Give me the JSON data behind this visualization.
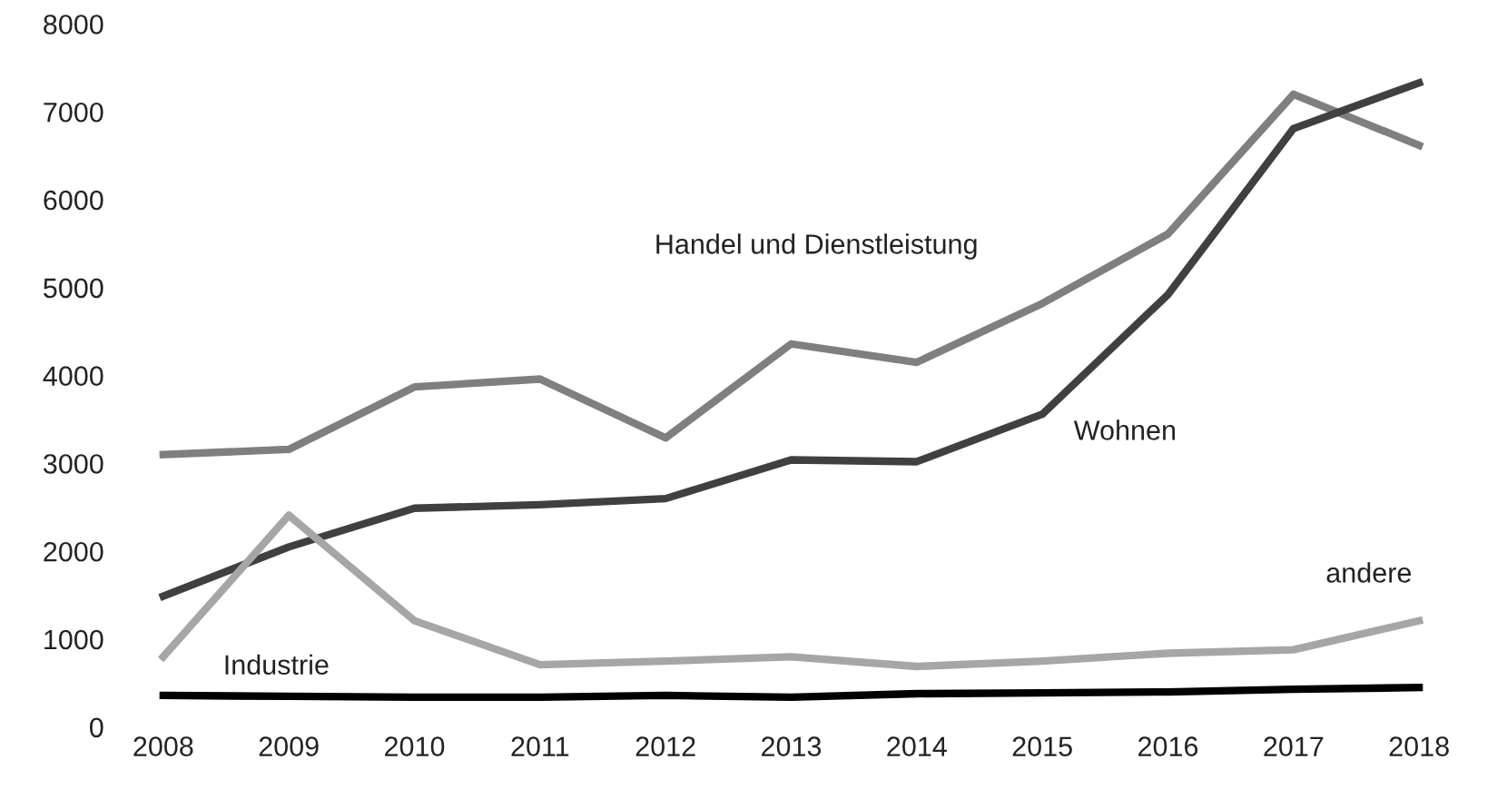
{
  "chart_data": {
    "type": "line",
    "categories": [
      "2008",
      "2009",
      "2010",
      "2011",
      "2012",
      "2013",
      "2014",
      "2015",
      "2016",
      "2017",
      "2018"
    ],
    "ylim": [
      0,
      8000
    ],
    "yticks": [
      0,
      1000,
      2000,
      3000,
      4000,
      5000,
      6000,
      7000,
      8000
    ],
    "grid": false,
    "legend": false,
    "marker": "none",
    "line_style": "solid",
    "series": [
      {
        "name": "Handel und Dienstleistung",
        "color": "#7f7f7f",
        "values": [
          3100,
          3160,
          3870,
          3960,
          3290,
          4360,
          4150,
          4820,
          5610,
          7200,
          6620
        ]
      },
      {
        "name": "Wohnen",
        "color": "#404040",
        "values": [
          1490,
          2050,
          2490,
          2530,
          2600,
          3040,
          3020,
          3560,
          4920,
          6810,
          7330
        ]
      },
      {
        "name": "andere",
        "color": "#a6a6a6",
        "values": [
          800,
          2410,
          1210,
          710,
          750,
          800,
          690,
          750,
          840,
          880,
          1210
        ]
      },
      {
        "name": "Industrie",
        "color": "#000000",
        "values": [
          360,
          350,
          340,
          340,
          360,
          340,
          380,
          390,
          400,
          430,
          450
        ]
      }
    ]
  }
}
